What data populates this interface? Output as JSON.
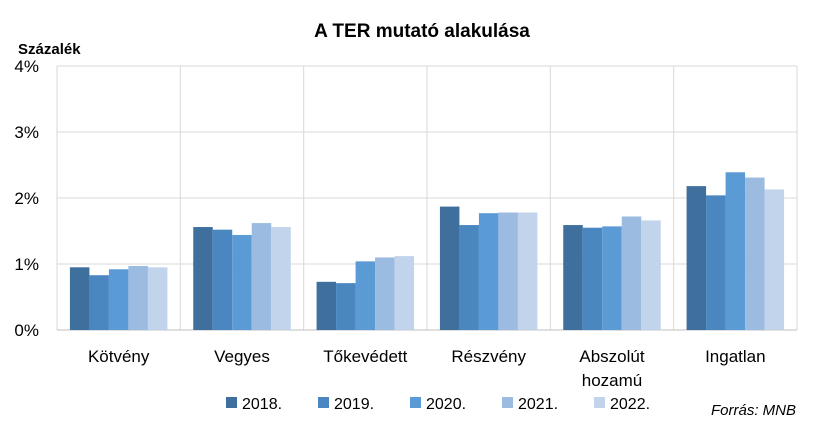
{
  "chart_data": {
    "type": "bar",
    "title": "A TER mutató alakulása",
    "ylabel": "Százalék",
    "source": "Forrás: MNB",
    "ylim": [
      0,
      4
    ],
    "yticks": [
      "0%",
      "1%",
      "2%",
      "3%",
      "4%"
    ],
    "grid": true,
    "legend_position": "bottom",
    "categories": [
      [
        "Kötvény"
      ],
      [
        "Vegyes"
      ],
      [
        "Tőkevédett"
      ],
      [
        "Részvény"
      ],
      [
        "Abszolút",
        "hozamú"
      ],
      [
        "Ingatlan"
      ]
    ],
    "series": [
      {
        "name": "2018.",
        "color": "#3f6f9c",
        "values": [
          0.95,
          1.56,
          0.73,
          1.87,
          1.59,
          2.18
        ]
      },
      {
        "name": "2019.",
        "color": "#4a86c0",
        "values": [
          0.83,
          1.52,
          0.71,
          1.59,
          1.55,
          2.04
        ]
      },
      {
        "name": "2020.",
        "color": "#5b9bd5",
        "values": [
          0.92,
          1.44,
          1.04,
          1.77,
          1.57,
          2.39
        ]
      },
      {
        "name": "2021.",
        "color": "#9bbbe0",
        "values": [
          0.97,
          1.62,
          1.1,
          1.78,
          1.72,
          2.31
        ]
      },
      {
        "name": "2022.",
        "color": "#c2d4ec",
        "values": [
          0.95,
          1.56,
          1.12,
          1.78,
          1.66,
          2.13
        ]
      }
    ]
  }
}
